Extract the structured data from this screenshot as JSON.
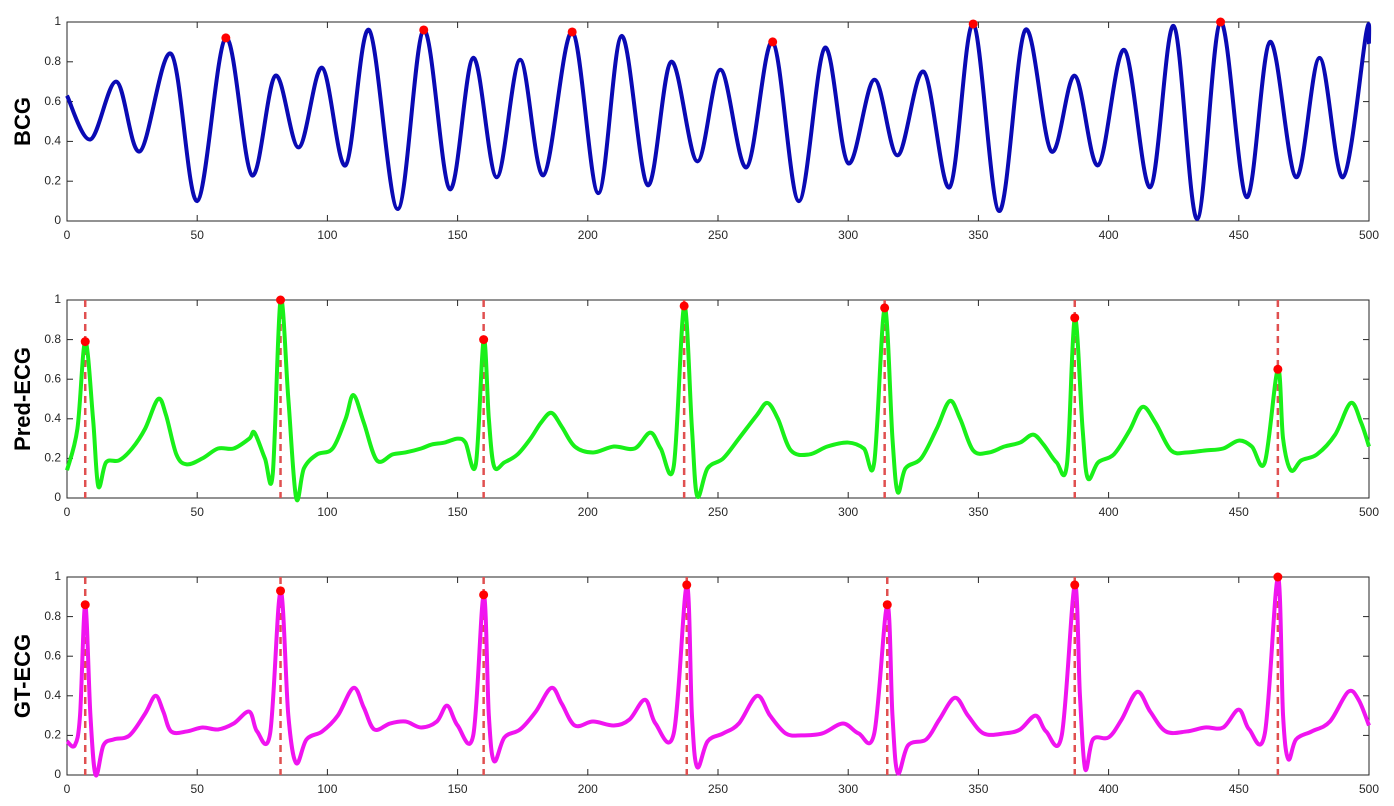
{
  "chart_data": [
    {
      "type": "line",
      "ylabel": "BCG",
      "xlim": [
        0,
        500
      ],
      "ylim": [
        0,
        1
      ],
      "xticks": [
        0,
        50,
        100,
        150,
        200,
        250,
        300,
        350,
        400,
        450,
        500
      ],
      "yticks": [
        0,
        0.2,
        0.4,
        0.6,
        0.8,
        1
      ],
      "series": [
        {
          "color": "#0a0ab4",
          "x": [
            0,
            9,
            19,
            28,
            40,
            50,
            61,
            71,
            80,
            89,
            98,
            107,
            116,
            127,
            137,
            147,
            156,
            165,
            174,
            183,
            194,
            204,
            213,
            223,
            232,
            242,
            251,
            261,
            271,
            281,
            291,
            300,
            310,
            319,
            329,
            339,
            348,
            358,
            368,
            378,
            387,
            396,
            406,
            416,
            425,
            434,
            443,
            453,
            462,
            472,
            481,
            490,
            499,
            500
          ],
          "values": [
            0.63,
            0.41,
            0.7,
            0.35,
            0.84,
            0.1,
            0.92,
            0.23,
            0.73,
            0.37,
            0.77,
            0.28,
            0.96,
            0.06,
            0.96,
            0.16,
            0.82,
            0.22,
            0.81,
            0.23,
            0.95,
            0.14,
            0.93,
            0.18,
            0.8,
            0.3,
            0.76,
            0.27,
            0.9,
            0.1,
            0.87,
            0.29,
            0.71,
            0.33,
            0.75,
            0.17,
            0.99,
            0.05,
            0.96,
            0.35,
            0.73,
            0.28,
            0.86,
            0.17,
            0.98,
            0.01,
            1.0,
            0.12,
            0.9,
            0.22,
            0.82,
            0.22,
            0.95,
            0.89
          ]
        }
      ],
      "markers": {
        "color": "#ff0000",
        "x": [
          61,
          137,
          194,
          271,
          348,
          443
        ],
        "values": [
          0.92,
          0.96,
          0.95,
          0.9,
          0.99,
          1.0
        ]
      }
    },
    {
      "type": "line",
      "ylabel": "Pred-ECG",
      "xlim": [
        0,
        500
      ],
      "ylim": [
        0,
        1
      ],
      "xticks": [
        0,
        50,
        100,
        150,
        200,
        250,
        300,
        350,
        400,
        450,
        500
      ],
      "yticks": [
        0,
        0.2,
        0.4,
        0.6,
        0.8,
        1
      ],
      "series": [
        {
          "color": "#19f019",
          "x": [
            0,
            4,
            7,
            10,
            12,
            15,
            20,
            25,
            30,
            35,
            38,
            42,
            46,
            52,
            58,
            64,
            70,
            72,
            76,
            79,
            82,
            85,
            88,
            91,
            96,
            102,
            107,
            110,
            114,
            119,
            125,
            130,
            136,
            140,
            145,
            150,
            153,
            157,
            160,
            162,
            164,
            168,
            173,
            178,
            182,
            186,
            190,
            195,
            202,
            210,
            218,
            224,
            228,
            233,
            237,
            240,
            242,
            246,
            252,
            258,
            265,
            269,
            273,
            278,
            285,
            292,
            300,
            306,
            310,
            314,
            317,
            319,
            322,
            328,
            334,
            339,
            343,
            348,
            354,
            360,
            366,
            371,
            375,
            380,
            384,
            387,
            390,
            392,
            396,
            402,
            408,
            413,
            418,
            424,
            430,
            437,
            444,
            450,
            455,
            460,
            465,
            467,
            470,
            474,
            480,
            487,
            493,
            497,
            500
          ],
          "values": [
            0.14,
            0.35,
            0.79,
            0.4,
            0.06,
            0.18,
            0.19,
            0.25,
            0.35,
            0.5,
            0.42,
            0.22,
            0.17,
            0.2,
            0.25,
            0.25,
            0.3,
            0.33,
            0.2,
            0.12,
            1.0,
            0.5,
            0.0,
            0.15,
            0.22,
            0.25,
            0.4,
            0.52,
            0.38,
            0.19,
            0.22,
            0.23,
            0.25,
            0.27,
            0.28,
            0.3,
            0.28,
            0.17,
            0.8,
            0.4,
            0.16,
            0.18,
            0.22,
            0.3,
            0.38,
            0.43,
            0.36,
            0.26,
            0.23,
            0.26,
            0.25,
            0.33,
            0.25,
            0.16,
            0.97,
            0.35,
            0.01,
            0.15,
            0.2,
            0.3,
            0.42,
            0.48,
            0.4,
            0.24,
            0.22,
            0.26,
            0.28,
            0.25,
            0.18,
            0.96,
            0.3,
            0.03,
            0.15,
            0.2,
            0.35,
            0.49,
            0.4,
            0.24,
            0.23,
            0.26,
            0.28,
            0.32,
            0.27,
            0.18,
            0.17,
            0.91,
            0.35,
            0.1,
            0.18,
            0.22,
            0.34,
            0.46,
            0.38,
            0.24,
            0.23,
            0.24,
            0.25,
            0.29,
            0.26,
            0.18,
            0.65,
            0.3,
            0.14,
            0.19,
            0.22,
            0.32,
            0.48,
            0.38,
            0.26
          ]
        }
      ],
      "markers": {
        "color": "#ff0000",
        "x": [
          7,
          82,
          160,
          237,
          314,
          387,
          465
        ],
        "values": [
          0.79,
          1.0,
          0.8,
          0.97,
          0.96,
          0.91,
          0.65
        ]
      },
      "vlines": {
        "color": "#e05050",
        "x": [
          7,
          82,
          160,
          237,
          314,
          387,
          465
        ]
      }
    },
    {
      "type": "line",
      "ylabel": "GT-ECG",
      "xlim": [
        0,
        500
      ],
      "ylim": [
        0,
        1
      ],
      "xticks": [
        0,
        50,
        100,
        150,
        200,
        250,
        300,
        350,
        400,
        450,
        500
      ],
      "yticks": [
        0,
        0.2,
        0.4,
        0.6,
        0.8,
        1
      ],
      "series": [
        {
          "color": "#f014f0",
          "x": [
            0,
            3,
            5,
            7,
            9,
            11,
            14,
            18,
            24,
            30,
            34,
            37,
            40,
            46,
            52,
            58,
            64,
            70,
            73,
            78,
            82,
            85,
            88,
            92,
            98,
            104,
            110,
            114,
            118,
            124,
            130,
            136,
            142,
            146,
            150,
            156,
            160,
            162,
            164,
            168,
            174,
            180,
            186,
            190,
            195,
            202,
            210,
            216,
            222,
            226,
            233,
            238,
            240,
            242,
            246,
            252,
            258,
            265,
            270,
            276,
            282,
            290,
            298,
            304,
            310,
            315,
            317,
            319,
            323,
            330,
            335,
            341,
            346,
            352,
            360,
            366,
            372,
            376,
            382,
            387,
            389,
            391,
            394,
            400,
            405,
            411,
            416,
            422,
            430,
            437,
            444,
            450,
            454,
            460,
            465,
            467,
            469,
            472,
            478,
            485,
            492,
            496,
            500
          ],
          "values": [
            0.17,
            0.15,
            0.3,
            0.86,
            0.3,
            0.0,
            0.15,
            0.18,
            0.2,
            0.31,
            0.4,
            0.32,
            0.22,
            0.22,
            0.24,
            0.23,
            0.26,
            0.32,
            0.22,
            0.21,
            0.93,
            0.3,
            0.06,
            0.18,
            0.22,
            0.3,
            0.44,
            0.34,
            0.23,
            0.26,
            0.27,
            0.24,
            0.27,
            0.35,
            0.25,
            0.2,
            0.91,
            0.3,
            0.07,
            0.19,
            0.23,
            0.32,
            0.44,
            0.36,
            0.25,
            0.27,
            0.25,
            0.28,
            0.38,
            0.26,
            0.21,
            0.96,
            0.3,
            0.04,
            0.17,
            0.21,
            0.26,
            0.4,
            0.3,
            0.21,
            0.2,
            0.21,
            0.26,
            0.21,
            0.21,
            0.86,
            0.3,
            0.01,
            0.15,
            0.18,
            0.28,
            0.39,
            0.3,
            0.21,
            0.21,
            0.23,
            0.3,
            0.22,
            0.2,
            0.96,
            0.4,
            0.03,
            0.18,
            0.19,
            0.28,
            0.42,
            0.32,
            0.22,
            0.22,
            0.24,
            0.24,
            0.33,
            0.23,
            0.21,
            1.0,
            0.3,
            0.08,
            0.18,
            0.22,
            0.27,
            0.42,
            0.38,
            0.25
          ]
        }
      ],
      "markers": {
        "color": "#ff0000",
        "x": [
          7,
          82,
          160,
          238,
          315,
          387,
          465
        ],
        "values": [
          0.86,
          0.93,
          0.91,
          0.96,
          0.86,
          0.96,
          1.0
        ]
      },
      "vlines": {
        "color": "#e05050",
        "x": [
          7,
          82,
          160,
          238,
          315,
          387,
          465
        ]
      }
    }
  ]
}
